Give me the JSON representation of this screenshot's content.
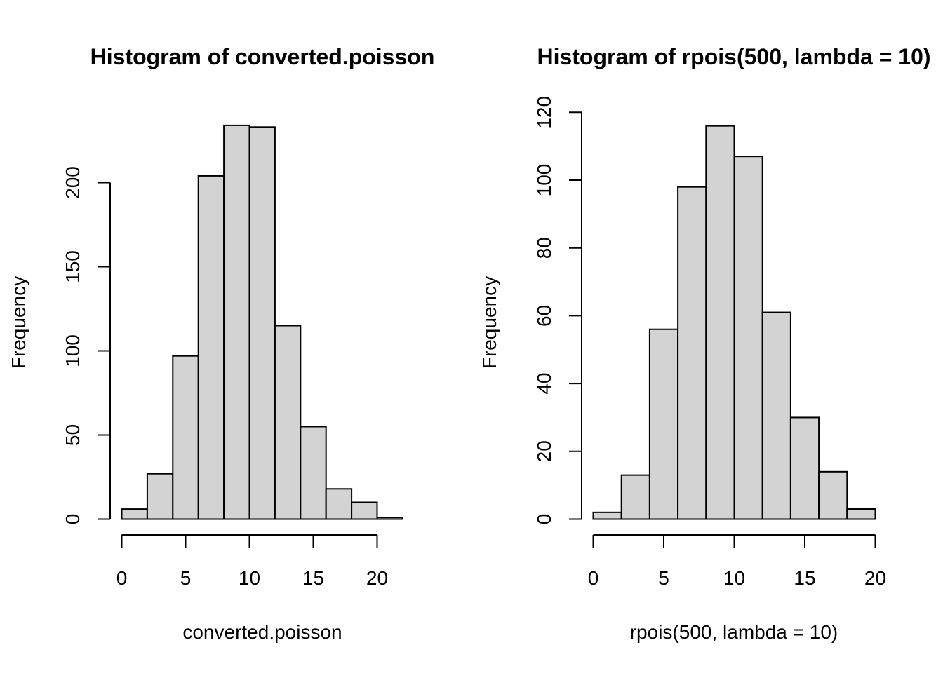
{
  "chart_data": [
    {
      "type": "bar",
      "title": "Histogram of converted.poisson",
      "xlabel": "converted.poisson",
      "ylabel": "Frequency",
      "bin_edges": [
        0,
        2,
        4,
        6,
        8,
        10,
        12,
        14,
        16,
        18,
        20,
        22
      ],
      "values": [
        6,
        27,
        97,
        204,
        234,
        233,
        115,
        55,
        18,
        10,
        1
      ],
      "xlim": [
        0,
        22
      ],
      "ylim": [
        0,
        234
      ],
      "x_ticks": [
        0,
        5,
        10,
        15,
        20
      ],
      "x_tick_labels": [
        "0",
        "5",
        "10",
        "15",
        "20"
      ],
      "y_ticks": [
        0,
        50,
        100,
        150,
        200
      ],
      "y_tick_labels": [
        "0",
        "50",
        "100",
        "150",
        "200"
      ],
      "bar_color": "#d3d3d3",
      "grid": false
    },
    {
      "type": "bar",
      "title": "Histogram of rpois(500, lambda = 10)",
      "xlabel": "rpois(500, lambda = 10)",
      "ylabel": "Frequency",
      "bin_edges": [
        0,
        2,
        4,
        6,
        8,
        10,
        12,
        14,
        16,
        18,
        20
      ],
      "values": [
        2,
        13,
        56,
        98,
        116,
        107,
        61,
        30,
        14,
        3
      ],
      "xlim": [
        0,
        20
      ],
      "ylim": [
        0,
        120
      ],
      "x_ticks": [
        0,
        5,
        10,
        15,
        20
      ],
      "x_tick_labels": [
        "0",
        "5",
        "10",
        "15",
        "20"
      ],
      "y_ticks": [
        0,
        20,
        40,
        60,
        80,
        100,
        120
      ],
      "y_tick_labels": [
        "0",
        "20",
        "40",
        "60",
        "80",
        "100",
        "120"
      ],
      "bar_color": "#d3d3d3",
      "grid": false
    }
  ]
}
